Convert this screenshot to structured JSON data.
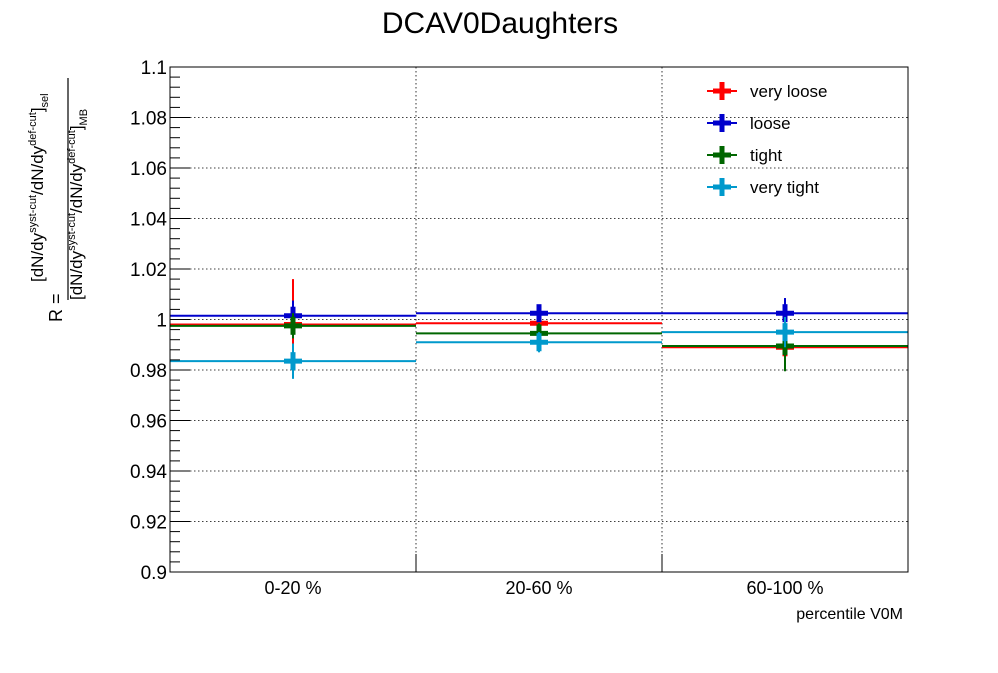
{
  "chart_data": {
    "type": "scatter",
    "title": "DCAV0Daughters",
    "xlabel": "percentile V0M",
    "ylabel": {
      "prefix": "R =",
      "num_open": "[dN/dy",
      "num_sup1": "syst-cut",
      "num_mid": "/dN/dy",
      "num_sup2": "def-cut",
      "num_close": "]",
      "num_sub": "sel",
      "den_open": "[dN/dy",
      "den_sup1": "syst-cut",
      "den_mid": "/dN/dy",
      "den_sup2": "def-cut",
      "den_close": "]",
      "den_sub": "MB"
    },
    "categories": [
      "0-20 %",
      "20-60 %",
      "60-100 %"
    ],
    "ylim": [
      0.9,
      1.1
    ],
    "y_ticks": [
      {
        "value": 0.9,
        "label": "0.9"
      },
      {
        "value": 0.92,
        "label": "0.92"
      },
      {
        "value": 0.94,
        "label": "0.94"
      },
      {
        "value": 0.96,
        "label": "0.96"
      },
      {
        "value": 0.98,
        "label": "0.98"
      },
      {
        "value": 1.0,
        "label": "1"
      },
      {
        "value": 1.02,
        "label": "1.02"
      },
      {
        "value": 1.04,
        "label": "1.04"
      },
      {
        "value": 1.06,
        "label": "1.06"
      },
      {
        "value": 1.08,
        "label": "1.08"
      },
      {
        "value": 1.1,
        "label": "1.1"
      }
    ],
    "grid": true,
    "legend_position": "top-right",
    "series": [
      {
        "name": "very loose",
        "color": "#ff0000",
        "values": [
          0.998,
          0.9985,
          0.989
        ],
        "errors": [
          0.018,
          0.004,
          0.005
        ]
      },
      {
        "name": "loose",
        "color": "#0000cc",
        "values": [
          1.0015,
          1.0025,
          1.0025
        ],
        "errors": [
          0.006,
          0.003,
          0.006
        ]
      },
      {
        "name": "tight",
        "color": "#006600",
        "values": [
          0.9975,
          0.9945,
          0.9895
        ],
        "errors": [
          0.005,
          0.004,
          0.01
        ]
      },
      {
        "name": "very tight",
        "color": "#0099cc",
        "values": [
          0.9835,
          0.991,
          0.995
        ],
        "errors": [
          0.007,
          0.004,
          0.006
        ]
      }
    ]
  }
}
